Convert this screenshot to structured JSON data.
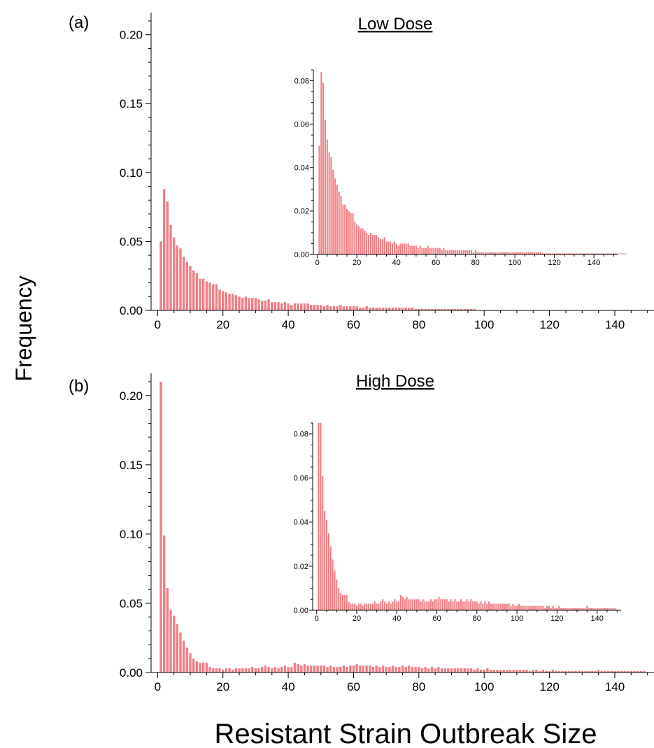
{
  "figure": {
    "ylabel": "Frequency",
    "xlabel": "Resistant Strain Outbreak Size",
    "bar_color": "#f07e84"
  },
  "chart_data": [
    {
      "type": "bar",
      "panel_label": "(a)",
      "title": "Low Dose",
      "xlim": [
        -2,
        152
      ],
      "ylim": [
        0,
        0.21
      ],
      "xticks": [
        "0",
        "20",
        "40",
        "60",
        "80",
        "100",
        "120",
        "140"
      ],
      "yticks": [
        "0.00",
        "0.05",
        "0.10",
        "0.15",
        "0.20"
      ],
      "x_start": 1,
      "values": [
        0.05,
        0.088,
        0.079,
        0.062,
        0.053,
        0.047,
        0.045,
        0.039,
        0.035,
        0.032,
        0.029,
        0.027,
        0.023,
        0.023,
        0.021,
        0.02,
        0.019,
        0.019,
        0.015,
        0.014,
        0.013,
        0.012,
        0.012,
        0.011,
        0.01,
        0.009,
        0.01,
        0.009,
        0.009,
        0.009,
        0.008,
        0.007,
        0.007,
        0.008,
        0.006,
        0.006,
        0.006,
        0.005,
        0.006,
        0.005,
        0.004,
        0.005,
        0.005,
        0.005,
        0.005,
        0.005,
        0.004,
        0.004,
        0.004,
        0.004,
        0.003,
        0.004,
        0.003,
        0.003,
        0.003,
        0.004,
        0.003,
        0.003,
        0.003,
        0.003,
        0.003,
        0.002,
        0.002,
        0.003,
        0.002,
        0.002,
        0.002,
        0.002,
        0.002,
        0.002,
        0.002,
        0.002,
        0.002,
        0.002,
        0.002,
        0.002,
        0.002,
        0.002,
        0.001,
        0.001,
        0.001,
        0.001,
        0.001,
        0.001,
        0.001,
        0.001,
        0.001,
        0.001,
        0.001,
        0.001,
        0.001,
        0.001,
        0.001,
        0.001,
        0.001,
        0.001,
        0.001
      ],
      "inset": {
        "xlim": [
          -2,
          152
        ],
        "ylim": [
          0,
          0.085
        ],
        "xticks": [
          "0",
          "20",
          "40",
          "60",
          "80",
          "100",
          "120",
          "140"
        ],
        "yticks": [
          "0.00",
          "0.02",
          "0.04",
          "0.06",
          "0.08"
        ],
        "x_start": 1,
        "values": [
          0.05,
          0.084,
          0.079,
          0.062,
          0.053,
          0.047,
          0.045,
          0.039,
          0.035,
          0.032,
          0.029,
          0.027,
          0.023,
          0.023,
          0.021,
          0.02,
          0.019,
          0.019,
          0.015,
          0.014,
          0.013,
          0.012,
          0.012,
          0.011,
          0.01,
          0.009,
          0.01,
          0.009,
          0.009,
          0.009,
          0.008,
          0.007,
          0.007,
          0.008,
          0.006,
          0.006,
          0.006,
          0.005,
          0.006,
          0.005,
          0.004,
          0.005,
          0.005,
          0.005,
          0.005,
          0.005,
          0.004,
          0.004,
          0.004,
          0.004,
          0.003,
          0.004,
          0.003,
          0.003,
          0.003,
          0.004,
          0.003,
          0.003,
          0.003,
          0.003,
          0.003,
          0.003,
          0.002,
          0.003,
          0.002,
          0.002,
          0.002,
          0.002,
          0.002,
          0.002,
          0.002,
          0.002,
          0.002,
          0.002,
          0.002,
          0.002,
          0.002,
          0.002,
          0.001,
          0.002,
          0.001,
          0.001,
          0.001,
          0.001,
          0.001,
          0.001,
          0.001,
          0.001,
          0.001,
          0.001,
          0.001,
          0.001,
          0.001,
          0.001,
          0.001,
          0.001,
          0.001,
          0.001,
          0.001,
          0.001,
          0.001,
          0.001,
          0.001,
          0.001,
          0.001,
          0.001,
          0.001,
          0.001,
          0.001,
          0.001,
          0.001,
          0.001,
          0.001,
          0.0005,
          0.0005,
          0.0005,
          0.0005,
          0.0005,
          0.0005,
          0.0005,
          0.0005,
          0.0005,
          0.0005,
          0.0005,
          0.0005,
          0.0005,
          0.0005,
          0.0005,
          0.0005,
          0.0005,
          0.0005,
          0.0005,
          0.0005,
          0.0005,
          0.0005,
          0.0005,
          0.0005,
          0.0005,
          0.0005,
          0.0005,
          0.0005,
          0.0005,
          0.0005,
          0.0005,
          0.0005,
          0.0005,
          0.0005,
          0.0005,
          0.0005,
          0.0005,
          0.0005,
          0.0005,
          0.0005,
          0.0005,
          0.0005,
          0.0005
        ]
      }
    },
    {
      "type": "bar",
      "panel_label": "(b)",
      "title": "High Dose",
      "xlim": [
        -2,
        152
      ],
      "ylim": [
        0,
        0.21
      ],
      "xticks": [
        "0",
        "20",
        "40",
        "60",
        "80",
        "100",
        "120",
        "140"
      ],
      "yticks": [
        "0.00",
        "0.05",
        "0.10",
        "0.15",
        "0.20"
      ],
      "x_start": 1,
      "values": [
        0.21,
        0.099,
        0.061,
        0.045,
        0.041,
        0.035,
        0.029,
        0.023,
        0.018,
        0.014,
        0.01,
        0.008,
        0.007,
        0.007,
        0.007,
        0.004,
        0.003,
        0.003,
        0.003,
        0.002,
        0.003,
        0.003,
        0.002,
        0.003,
        0.003,
        0.003,
        0.003,
        0.003,
        0.004,
        0.003,
        0.003,
        0.004,
        0.005,
        0.004,
        0.003,
        0.004,
        0.003,
        0.004,
        0.005,
        0.004,
        0.004,
        0.007,
        0.006,
        0.005,
        0.006,
        0.005,
        0.005,
        0.005,
        0.005,
        0.005,
        0.005,
        0.004,
        0.005,
        0.004,
        0.004,
        0.004,
        0.005,
        0.004,
        0.005,
        0.005,
        0.006,
        0.005,
        0.005,
        0.005,
        0.005,
        0.004,
        0.005,
        0.004,
        0.005,
        0.004,
        0.004,
        0.005,
        0.004,
        0.004,
        0.005,
        0.004,
        0.005,
        0.004,
        0.004,
        0.004,
        0.003,
        0.004,
        0.003,
        0.004,
        0.003,
        0.004,
        0.003,
        0.003,
        0.003,
        0.003,
        0.003,
        0.003,
        0.003,
        0.003,
        0.003,
        0.003,
        0.002,
        0.003,
        0.002,
        0.002,
        0.003,
        0.002,
        0.002,
        0.002,
        0.002,
        0.002,
        0.002,
        0.002,
        0.002,
        0.002,
        0.002,
        0.002,
        0.002,
        0.001,
        0.002,
        0.002,
        0.001,
        0.002,
        0.001,
        0.001,
        0.002,
        0.001,
        0.001,
        0.001,
        0.001,
        0.001,
        0.001,
        0.001,
        0.001,
        0.001,
        0.001,
        0.001,
        0.001,
        0.001,
        0.002,
        0.001,
        0.001,
        0.001,
        0.001,
        0.001,
        0.001,
        0.001,
        0.001,
        0.001,
        0.001,
        0.001,
        0.001,
        0.001,
        0.001
      ],
      "inset": {
        "xlim": [
          -2,
          152
        ],
        "ylim": [
          0,
          0.085
        ],
        "xticks": [
          "0",
          "20",
          "40",
          "60",
          "80",
          "100",
          "120",
          "140"
        ],
        "yticks": [
          "0.00",
          "0.02",
          "0.04",
          "0.06",
          "0.08"
        ],
        "x_start": 1,
        "values": [
          0.085,
          0.085,
          0.061,
          0.045,
          0.041,
          0.035,
          0.029,
          0.023,
          0.018,
          0.014,
          0.01,
          0.008,
          0.007,
          0.007,
          0.007,
          0.004,
          0.003,
          0.003,
          0.003,
          0.002,
          0.003,
          0.003,
          0.002,
          0.003,
          0.003,
          0.003,
          0.003,
          0.003,
          0.004,
          0.003,
          0.003,
          0.004,
          0.005,
          0.004,
          0.003,
          0.004,
          0.003,
          0.004,
          0.005,
          0.004,
          0.004,
          0.007,
          0.006,
          0.005,
          0.006,
          0.005,
          0.005,
          0.005,
          0.005,
          0.005,
          0.005,
          0.004,
          0.005,
          0.004,
          0.004,
          0.004,
          0.005,
          0.004,
          0.005,
          0.005,
          0.006,
          0.005,
          0.005,
          0.005,
          0.005,
          0.004,
          0.005,
          0.004,
          0.005,
          0.004,
          0.004,
          0.005,
          0.004,
          0.004,
          0.005,
          0.004,
          0.005,
          0.004,
          0.004,
          0.004,
          0.003,
          0.004,
          0.003,
          0.004,
          0.003,
          0.004,
          0.003,
          0.003,
          0.003,
          0.003,
          0.003,
          0.003,
          0.003,
          0.003,
          0.003,
          0.003,
          0.002,
          0.003,
          0.002,
          0.002,
          0.003,
          0.002,
          0.002,
          0.002,
          0.002,
          0.002,
          0.002,
          0.002,
          0.002,
          0.002,
          0.002,
          0.002,
          0.002,
          0.001,
          0.002,
          0.002,
          0.001,
          0.002,
          0.001,
          0.001,
          0.002,
          0.001,
          0.001,
          0.001,
          0.001,
          0.001,
          0.001,
          0.001,
          0.001,
          0.001,
          0.001,
          0.001,
          0.001,
          0.001,
          0.002,
          0.001,
          0.001,
          0.001,
          0.001,
          0.001,
          0.001,
          0.001,
          0.001,
          0.001,
          0.001,
          0.001,
          0.001,
          0.001,
          0.001
        ]
      }
    }
  ]
}
